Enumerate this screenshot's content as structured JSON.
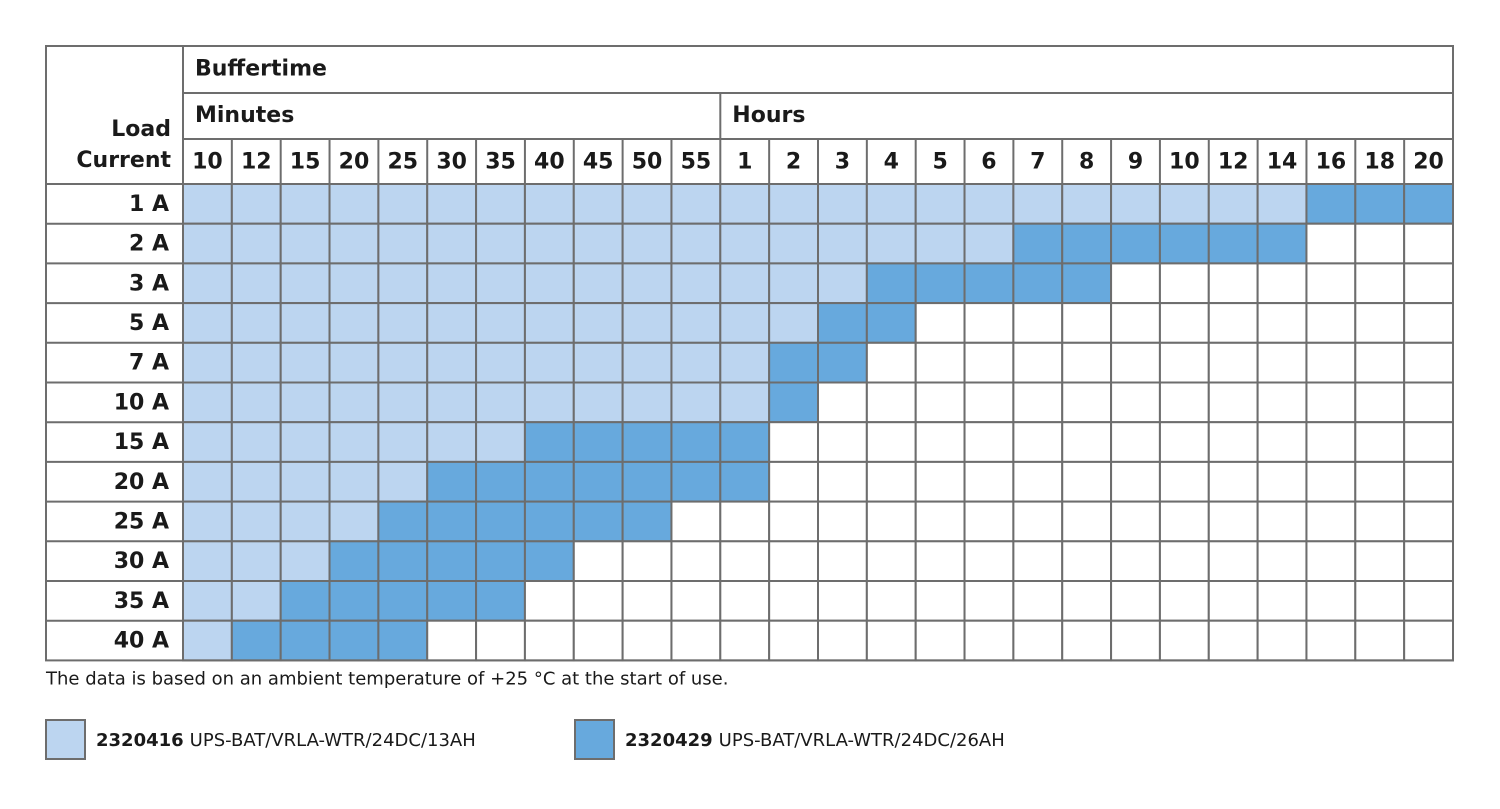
{
  "table": {
    "row_header": [
      "Load",
      "Current"
    ],
    "title": "Buffertime",
    "groups": [
      {
        "label": "Minutes",
        "columns": [
          10,
          12,
          15,
          20,
          25,
          30,
          35,
          40,
          45,
          50,
          55
        ]
      },
      {
        "label": "Hours",
        "columns": [
          1,
          2,
          3,
          4,
          5,
          6,
          7,
          8,
          9,
          10,
          12,
          14,
          16,
          18,
          20
        ]
      }
    ],
    "rows": [
      {
        "label": "1 A",
        "cells": [
          0,
          0,
          0,
          0,
          0,
          0,
          0,
          0,
          0,
          0,
          0,
          0,
          0,
          0,
          0,
          0,
          0,
          0,
          0,
          0,
          0,
          0,
          0,
          1,
          1,
          1
        ]
      },
      {
        "label": "2 A",
        "cells": [
          0,
          0,
          0,
          0,
          0,
          0,
          0,
          0,
          0,
          0,
          0,
          0,
          0,
          0,
          0,
          0,
          0,
          1,
          1,
          1,
          1,
          1,
          1,
          null,
          null,
          null
        ]
      },
      {
        "label": "3 A",
        "cells": [
          0,
          0,
          0,
          0,
          0,
          0,
          0,
          0,
          0,
          0,
          0,
          0,
          0,
          0,
          1,
          1,
          1,
          1,
          1,
          null,
          null,
          null,
          null,
          null,
          null,
          null
        ]
      },
      {
        "label": "5 A",
        "cells": [
          0,
          0,
          0,
          0,
          0,
          0,
          0,
          0,
          0,
          0,
          0,
          0,
          0,
          1,
          1,
          null,
          null,
          null,
          null,
          null,
          null,
          null,
          null,
          null,
          null,
          null
        ]
      },
      {
        "label": "7 A",
        "cells": [
          0,
          0,
          0,
          0,
          0,
          0,
          0,
          0,
          0,
          0,
          0,
          0,
          1,
          1,
          null,
          null,
          null,
          null,
          null,
          null,
          null,
          null,
          null,
          null,
          null,
          null
        ]
      },
      {
        "label": "10 A",
        "cells": [
          0,
          0,
          0,
          0,
          0,
          0,
          0,
          0,
          0,
          0,
          0,
          0,
          1,
          null,
          null,
          null,
          null,
          null,
          null,
          null,
          null,
          null,
          null,
          null,
          null,
          null
        ]
      },
      {
        "label": "15 A",
        "cells": [
          0,
          0,
          0,
          0,
          0,
          0,
          0,
          1,
          1,
          1,
          1,
          1,
          null,
          null,
          null,
          null,
          null,
          null,
          null,
          null,
          null,
          null,
          null,
          null,
          null,
          null
        ]
      },
      {
        "label": "20 A",
        "cells": [
          0,
          0,
          0,
          0,
          0,
          1,
          1,
          1,
          1,
          1,
          1,
          1,
          null,
          null,
          null,
          null,
          null,
          null,
          null,
          null,
          null,
          null,
          null,
          null,
          null,
          null
        ]
      },
      {
        "label": "25 A",
        "cells": [
          0,
          0,
          0,
          0,
          1,
          1,
          1,
          1,
          1,
          1,
          null,
          null,
          null,
          null,
          null,
          null,
          null,
          null,
          null,
          null,
          null,
          null,
          null,
          null,
          null,
          null
        ]
      },
      {
        "label": "30 A",
        "cells": [
          0,
          0,
          0,
          1,
          1,
          1,
          1,
          1,
          null,
          null,
          null,
          null,
          null,
          null,
          null,
          null,
          null,
          null,
          null,
          null,
          null,
          null,
          null,
          null,
          null,
          null
        ]
      },
      {
        "label": "35 A",
        "cells": [
          0,
          0,
          1,
          1,
          1,
          1,
          1,
          null,
          null,
          null,
          null,
          null,
          null,
          null,
          null,
          null,
          null,
          null,
          null,
          null,
          null,
          null,
          null,
          null,
          null,
          null
        ]
      },
      {
        "label": "40 A",
        "cells": [
          0,
          1,
          1,
          1,
          1,
          null,
          null,
          null,
          null,
          null,
          null,
          null,
          null,
          null,
          null,
          null,
          null,
          null,
          null,
          null,
          null,
          null,
          null,
          null,
          null,
          null
        ]
      }
    ]
  },
  "footnote": "The data is based on an ambient temperature of +25 °C at the start of use.",
  "legend": [
    {
      "code": "2320416",
      "name": "UPS-BAT/VRLA-WTR/24DC/13AH",
      "color": "#bcd5f0"
    },
    {
      "code": "2320429",
      "name": "UPS-BAT/VRLA-WTR/24DC/26AH",
      "color": "#67a9dd"
    }
  ]
}
